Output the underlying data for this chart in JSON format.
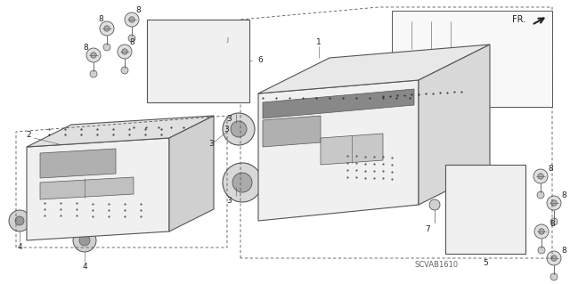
{
  "background_color": "#ffffff",
  "line_color": "#555555",
  "dark_color": "#222222",
  "gray_color": "#aaaaaa",
  "light_gray": "#dddddd",
  "watermark": "SCVAB1610",
  "fig_width": 6.4,
  "fig_height": 3.19,
  "dpi": 100
}
